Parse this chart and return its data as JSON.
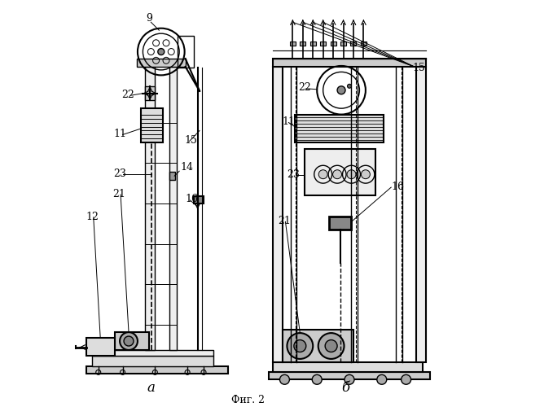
{
  "title": "Фиг. 2",
  "label_a": "а",
  "label_b": "б",
  "bg_color": "#ffffff",
  "line_color": "#000000",
  "line_width": 1.0
}
